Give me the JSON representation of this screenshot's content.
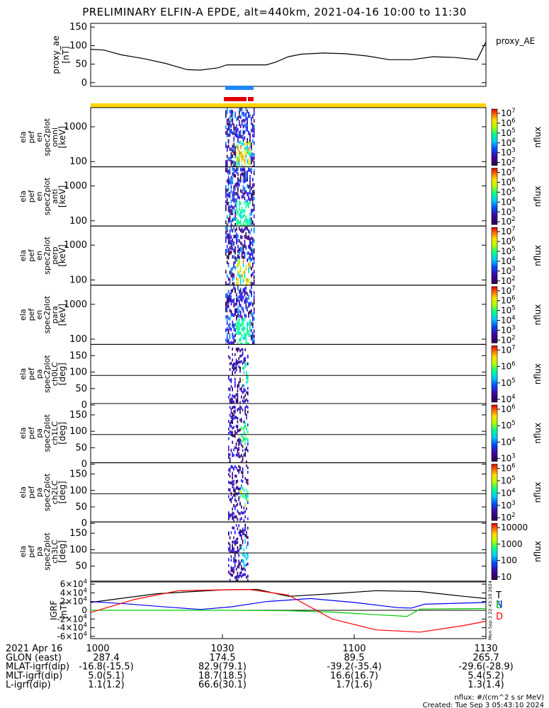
{
  "title": "PRELIMINARY ELFIN-A EPDE, alt=440km, 2021-04-16 10:00 to 11:30",
  "chart_data": [
    {
      "type": "line",
      "panel": "proxy_ae",
      "ylabel": [
        "proxy_ae",
        "[nT]"
      ],
      "legend": "proxy_AE",
      "ylim": [
        -10,
        160
      ],
      "yticks": [
        "0",
        "50",
        "100",
        "150"
      ],
      "x_minutes": [
        0,
        3,
        7,
        12,
        17,
        22,
        25,
        29,
        31,
        35,
        40,
        42,
        45,
        48,
        53,
        58,
        63,
        68,
        73,
        78,
        83,
        88,
        90
      ],
      "values": [
        90,
        88,
        75,
        65,
        52,
        35,
        34,
        40,
        48,
        48,
        48,
        55,
        70,
        77,
        80,
        78,
        72,
        62,
        62,
        70,
        68,
        62,
        110
      ]
    },
    {
      "type": "heatmap",
      "panel": "spectrogram",
      "rows": [
        {
          "ylabel": [
            "ela",
            "pef",
            "en",
            "spec2plot",
            "omni",
            "[keV]"
          ],
          "yticks": [
            "100",
            "1000"
          ],
          "cbar_ticks": [
            "10^7",
            "10^6",
            "10^5",
            "10^4",
            "10^3",
            "10^2"
          ],
          "cbar_label": "nflux"
        },
        {
          "ylabel": [
            "ela",
            "pef",
            "en",
            "spec2plot",
            "anti",
            "[keV]"
          ],
          "yticks": [
            "100",
            "1000"
          ],
          "cbar_ticks": [
            "10^7",
            "10^6",
            "10^5",
            "10^4",
            "10^3",
            "10^2"
          ],
          "cbar_label": "nflux"
        },
        {
          "ylabel": [
            "ela",
            "pef",
            "en",
            "spec2plot",
            "perp",
            "[keV]"
          ],
          "yticks": [
            "100",
            "1000"
          ],
          "cbar_ticks": [
            "10^7",
            "10^6",
            "10^5",
            "10^4",
            "10^3",
            "10^2"
          ],
          "cbar_label": "nflux"
        },
        {
          "ylabel": [
            "ela",
            "pef",
            "en",
            "spec2plot",
            "para",
            "[keV]"
          ],
          "yticks": [
            "100",
            "1000"
          ],
          "cbar_ticks": [
            "10^7",
            "10^6",
            "10^5",
            "10^4",
            "10^3",
            "10^2"
          ],
          "cbar_label": "nflux"
        },
        {
          "ylabel": [
            "ela",
            "pef",
            "pa",
            "spec2plot",
            "ch0LC",
            "[deg]"
          ],
          "yticks": [
            "0",
            "50",
            "100",
            "150"
          ],
          "cbar_ticks": [
            "10^7",
            "10^6",
            "10^5",
            "10^4"
          ],
          "cbar_label": "nflux"
        },
        {
          "ylabel": [
            "ela",
            "pef",
            "pa",
            "spec2plot",
            "ch1LC",
            "[deg]"
          ],
          "yticks": [
            "0",
            "50",
            "100",
            "150"
          ],
          "cbar_ticks": [
            "10^6",
            "10^5",
            "10^4",
            "10^3"
          ],
          "cbar_label": "nflux"
        },
        {
          "ylabel": [
            "ela",
            "pef",
            "pa",
            "spec2plot",
            "ch2LC",
            "[deg]"
          ],
          "yticks": [
            "0",
            "50",
            "100",
            "150"
          ],
          "cbar_ticks": [
            "10^6",
            "10^5",
            "10^4",
            "10^3",
            "10^2"
          ],
          "cbar_label": "nflux"
        },
        {
          "ylabel": [
            "ela",
            "pef",
            "pa",
            "spec2plot",
            "ch3LC",
            "[deg]"
          ],
          "yticks": [
            "50",
            "100",
            "150"
          ],
          "cbar_ticks": [
            "10000",
            "1000",
            "100",
            "10"
          ],
          "cbar_label": "nflux"
        }
      ]
    },
    {
      "type": "line",
      "panel": "igrf",
      "ylabel": [
        "IGRF",
        "[nT]"
      ],
      "ylim": [
        -65000,
        65000
      ],
      "yticks": [
        "-6×10^4",
        "-4×10^4",
        "-2×10^4",
        "0",
        "2×10^4",
        "4×10^4",
        "6×10^4"
      ],
      "series": [
        {
          "name": "T",
          "color": "#000000",
          "x_minutes": [
            0,
            15,
            30,
            38,
            45,
            55,
            65,
            75,
            85,
            90
          ],
          "values": [
            18000,
            38000,
            47000,
            48000,
            32000,
            38000,
            45000,
            43000,
            32000,
            27000
          ]
        },
        {
          "name": "N",
          "color": "#0000ff",
          "x_minutes": [
            0,
            8,
            18,
            25,
            32,
            40,
            50,
            60,
            70,
            73,
            76,
            90
          ],
          "values": [
            20000,
            15000,
            7000,
            2000,
            8000,
            20000,
            27000,
            18000,
            6000,
            5000,
            14000,
            18000
          ]
        },
        {
          "name": "E",
          "color": "#00cc00",
          "x_minutes": [
            0,
            30,
            45,
            55,
            65,
            72,
            75,
            90
          ],
          "values": [
            0,
            0,
            -1000,
            -4000,
            -10000,
            -14000,
            3000,
            4000
          ]
        },
        {
          "name": "D",
          "color": "#ff0000",
          "x_minutes": [
            0,
            10,
            20,
            30,
            36,
            45,
            55,
            65,
            75,
            85,
            90
          ],
          "values": [
            -5000,
            25000,
            45000,
            47000,
            48000,
            35000,
            -20000,
            -45000,
            -50000,
            -35000,
            -25000
          ]
        }
      ]
    }
  ],
  "timestamp_side": "Mon Sep  3 22:43:10 2024",
  "footer": {
    "times": [
      "1000",
      "1030",
      "1100",
      "1130"
    ],
    "rows": [
      {
        "label": "2021 Apr 16",
        "values": [
          "",
          "",
          "",
          ""
        ]
      },
      {
        "label": "GLON (east)",
        "values": [
          "287.4",
          "174.5",
          "89.5",
          "265.7"
        ]
      },
      {
        "label": "MLAT-igrf(dip)",
        "values": [
          "-16.8(-15.5)",
          "82.9(79.1)",
          "-39.2(-35.4)",
          "-29.6(-28.9)"
        ]
      },
      {
        "label": "MLT-igrf(dip)",
        "values": [
          "5.0(5.1)",
          "18.7(18.5)",
          "16.6(16.7)",
          "5.4(5.2)"
        ]
      },
      {
        "label": "L-igrf(dip)",
        "values": [
          "1.1(1.2)",
          "66.6(30.1)",
          "1.7(1.6)",
          "1.3(1.4)"
        ]
      }
    ],
    "units": "nflux: #/(cm^2 s sr MeV)",
    "created": "Created: Tue Sep  3 05:43:10 2024"
  }
}
